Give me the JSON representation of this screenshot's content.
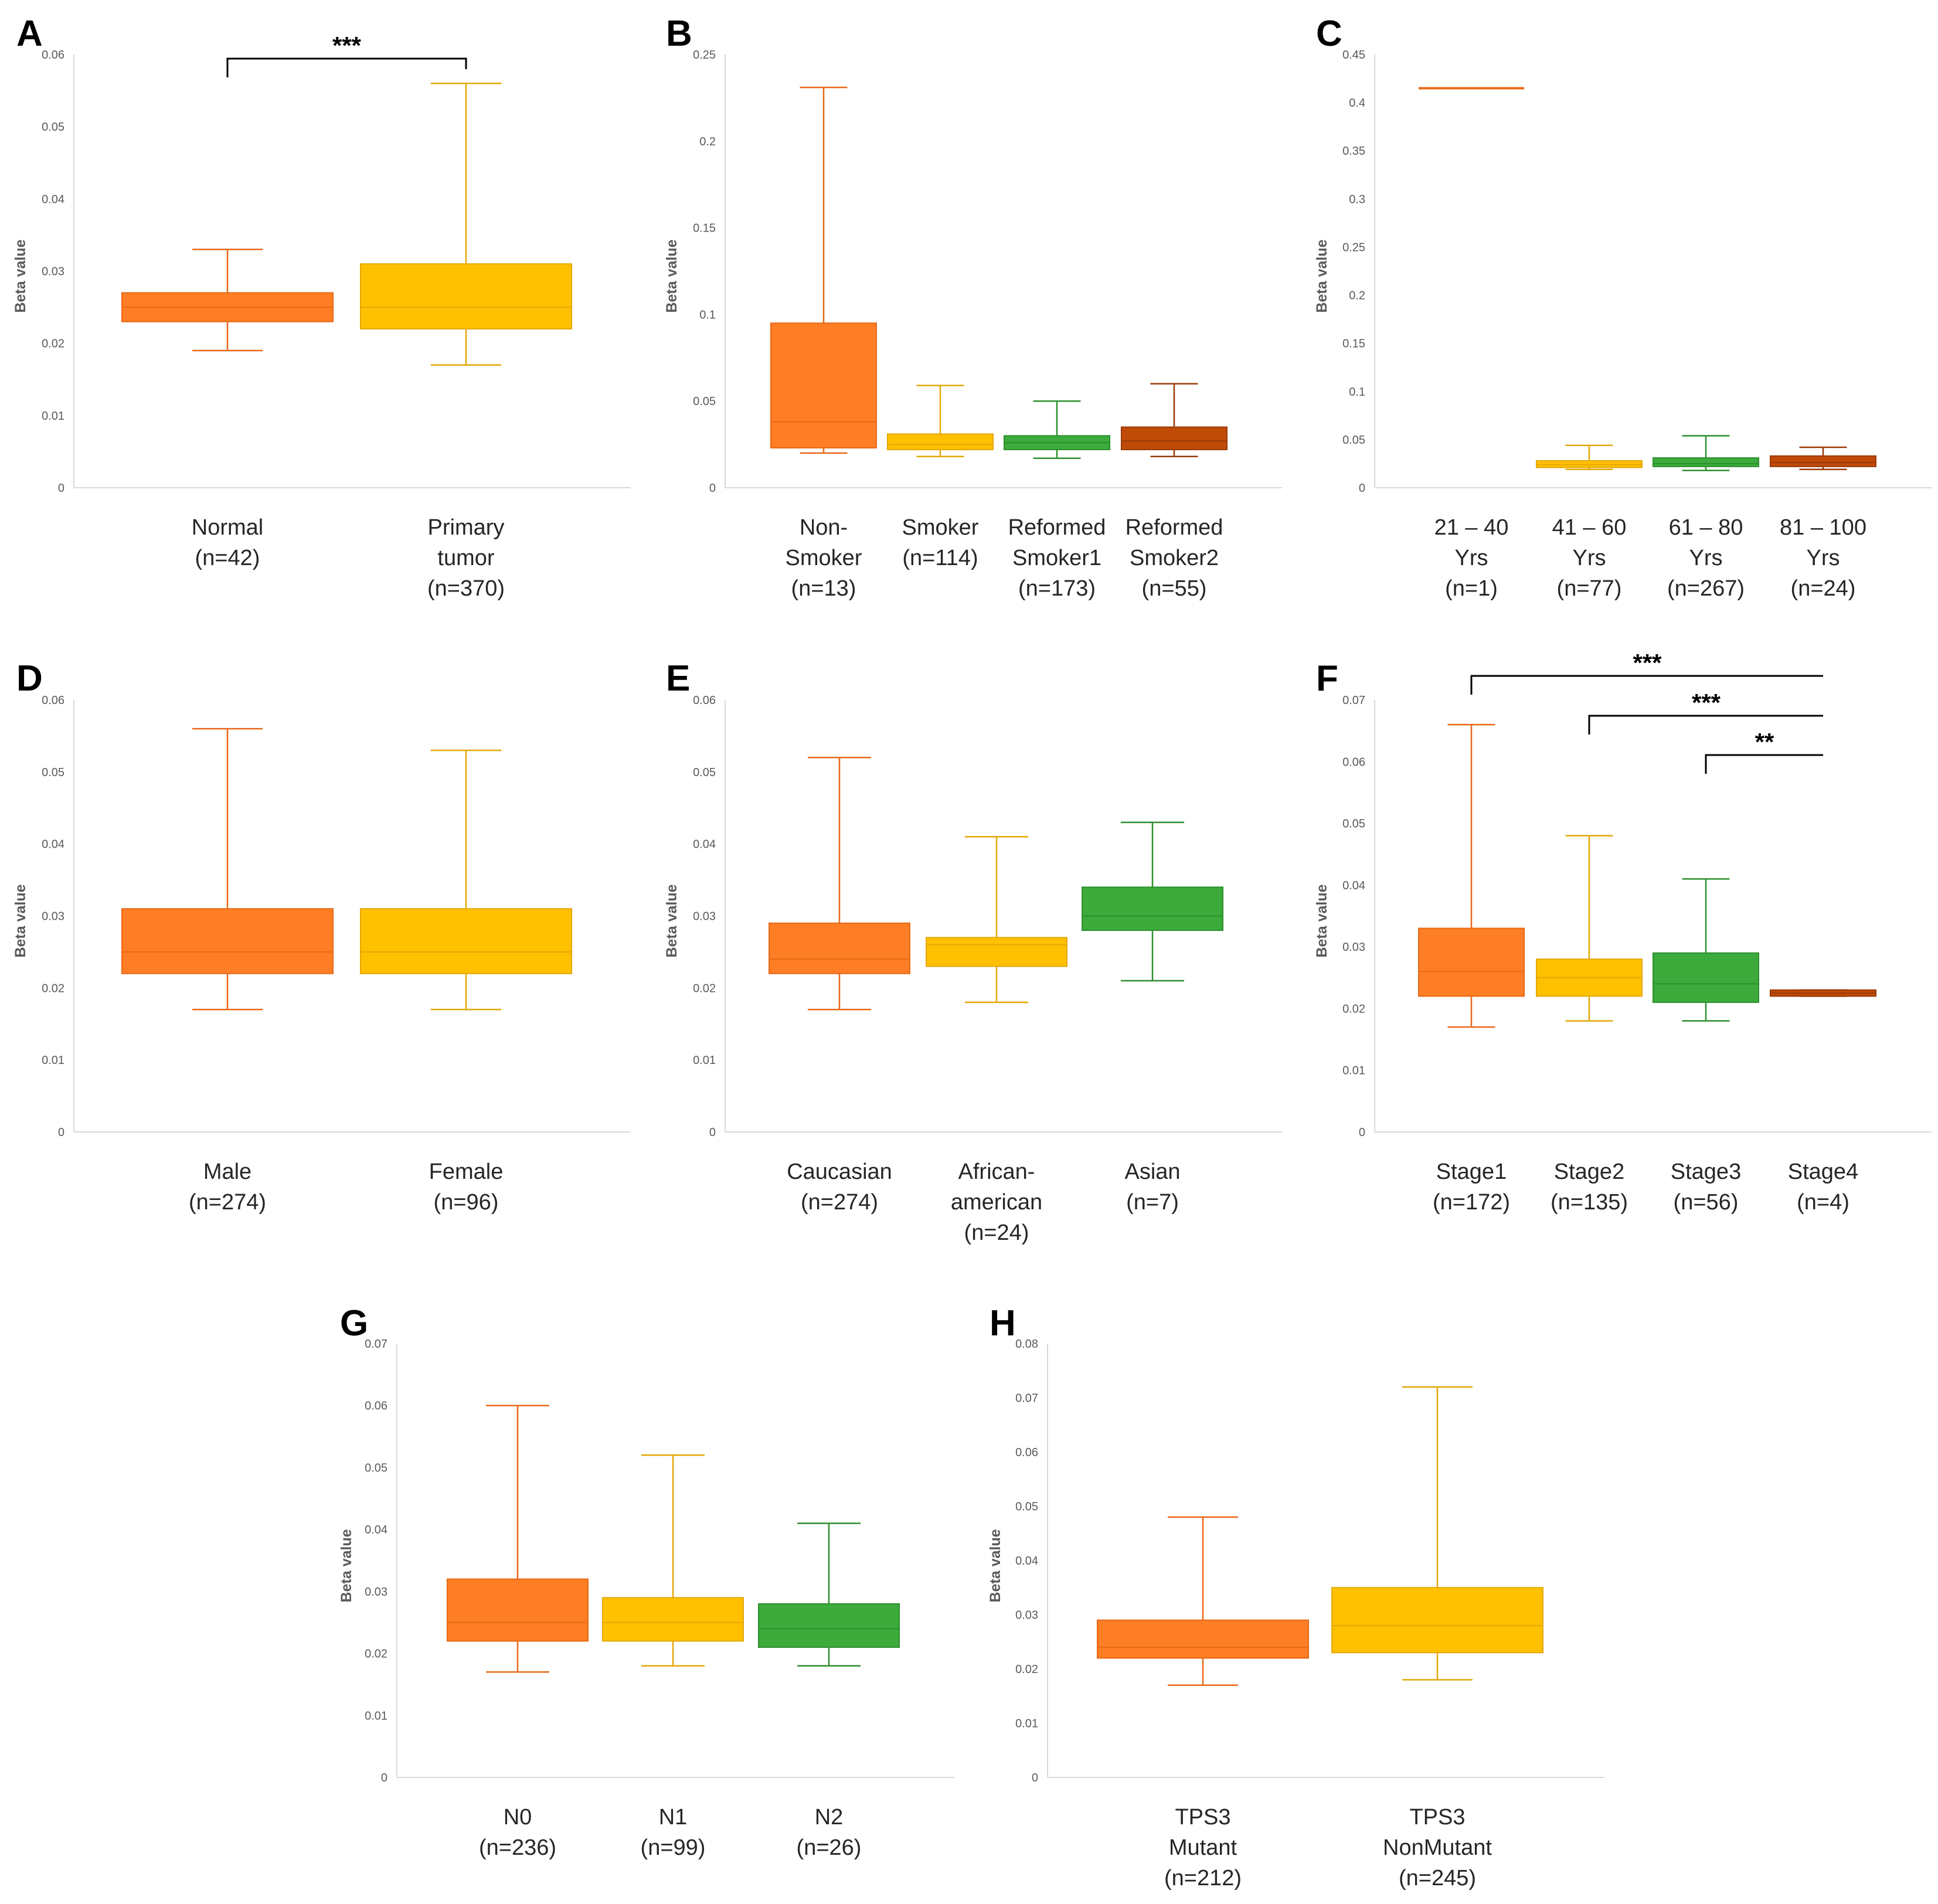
{
  "colors": {
    "orange": "#fd7e24",
    "orange_stroke": "#e86818",
    "yellow": "#ffc000",
    "yellow_stroke": "#e3a806",
    "green": "#3cab3c",
    "green_stroke": "#2d8f2d",
    "brown": "#c04a08",
    "brown_stroke": "#9a3a06"
  },
  "chart_data": [
    {
      "panel": "A",
      "type": "boxplot",
      "ylabel": "Beta value",
      "ylim": [
        0,
        0.06
      ],
      "yticks": [
        "0",
        "0.01",
        "0.02",
        "0.03",
        "0.04",
        "0.05",
        "0.06"
      ],
      "categories": [
        {
          "label": [
            "Normal",
            "(n=42)"
          ],
          "min": 0.019,
          "q1": 0.023,
          "median": 0.025,
          "q3": 0.027,
          "max": 0.033,
          "color": "orange"
        },
        {
          "label": [
            "Primary",
            "tumor",
            "(n=370)"
          ],
          "min": 0.017,
          "q1": 0.022,
          "median": 0.025,
          "q3": 0.031,
          "max": 0.056,
          "color": "yellow"
        }
      ],
      "significance": [
        {
          "from": 0,
          "to": 1,
          "label": "***"
        }
      ]
    },
    {
      "panel": "B",
      "type": "boxplot",
      "ylabel": "Beta value",
      "ylim": [
        0,
        0.25
      ],
      "yticks": [
        "0",
        "0.05",
        "0.1",
        "0.15",
        "0.2",
        "0.25"
      ],
      "categories": [
        {
          "label": [
            "Non-",
            "Smoker",
            "(n=13)"
          ],
          "min": 0.02,
          "q1": 0.023,
          "median": 0.038,
          "q3": 0.095,
          "max": 0.231,
          "color": "orange"
        },
        {
          "label": [
            "Smoker",
            "(n=114)"
          ],
          "min": 0.018,
          "q1": 0.022,
          "median": 0.025,
          "q3": 0.031,
          "max": 0.059,
          "color": "yellow"
        },
        {
          "label": [
            "Reformed",
            "Smoker1",
            "(n=173)"
          ],
          "min": 0.017,
          "q1": 0.022,
          "median": 0.026,
          "q3": 0.03,
          "max": 0.05,
          "color": "green"
        },
        {
          "label": [
            "Reformed",
            "Smoker2",
            "(n=55)"
          ],
          "min": 0.018,
          "q1": 0.022,
          "median": 0.027,
          "q3": 0.035,
          "max": 0.06,
          "color": "brown"
        }
      ],
      "significance": []
    },
    {
      "panel": "C",
      "type": "boxplot",
      "ylabel": "Beta value",
      "ylim": [
        0,
        0.45
      ],
      "yticks": [
        "0",
        "0.05",
        "0.1",
        "0.15",
        "0.2",
        "0.25",
        "0.3",
        "0.35",
        "0.4",
        "0.45"
      ],
      "categories": [
        {
          "label": [
            "21 – 40",
            "Yrs",
            "(n=1)"
          ],
          "min": 0.415,
          "q1": 0.415,
          "median": 0.415,
          "q3": 0.415,
          "max": 0.415,
          "color": "orange"
        },
        {
          "label": [
            "41 – 60",
            "Yrs",
            "(n=77)"
          ],
          "min": 0.019,
          "q1": 0.021,
          "median": 0.024,
          "q3": 0.028,
          "max": 0.044,
          "color": "yellow"
        },
        {
          "label": [
            "61 – 80",
            "Yrs",
            "(n=267)"
          ],
          "min": 0.018,
          "q1": 0.022,
          "median": 0.025,
          "q3": 0.031,
          "max": 0.054,
          "color": "green"
        },
        {
          "label": [
            "81 – 100",
            "Yrs",
            "(n=24)"
          ],
          "min": 0.019,
          "q1": 0.022,
          "median": 0.026,
          "q3": 0.033,
          "max": 0.042,
          "color": "brown"
        }
      ],
      "significance": []
    },
    {
      "panel": "D",
      "type": "boxplot",
      "ylabel": "Beta value",
      "ylim": [
        0,
        0.06
      ],
      "yticks": [
        "0",
        "0.01",
        "0.02",
        "0.03",
        "0.04",
        "0.05",
        "0.06"
      ],
      "categories": [
        {
          "label": [
            "Male",
            "(n=274)"
          ],
          "min": 0.017,
          "q1": 0.022,
          "median": 0.025,
          "q3": 0.031,
          "max": 0.056,
          "color": "orange"
        },
        {
          "label": [
            "Female",
            "(n=96)"
          ],
          "min": 0.017,
          "q1": 0.022,
          "median": 0.025,
          "q3": 0.031,
          "max": 0.053,
          "color": "yellow"
        }
      ],
      "significance": []
    },
    {
      "panel": "E",
      "type": "boxplot",
      "ylabel": "Beta value",
      "ylim": [
        0,
        0.06
      ],
      "yticks": [
        "0",
        "0.01",
        "0.02",
        "0.03",
        "0.04",
        "0.05",
        "0.06"
      ],
      "categories": [
        {
          "label": [
            "Caucasian",
            "(n=274)"
          ],
          "min": 0.017,
          "q1": 0.022,
          "median": 0.024,
          "q3": 0.029,
          "max": 0.052,
          "color": "orange"
        },
        {
          "label": [
            "African-",
            "american",
            "(n=24)"
          ],
          "min": 0.018,
          "q1": 0.023,
          "median": 0.026,
          "q3": 0.027,
          "max": 0.041,
          "color": "yellow"
        },
        {
          "label": [
            "Asian",
            "(n=7)"
          ],
          "min": 0.021,
          "q1": 0.028,
          "median": 0.03,
          "q3": 0.034,
          "max": 0.043,
          "color": "green"
        }
      ],
      "significance": []
    },
    {
      "panel": "F",
      "type": "boxplot",
      "ylabel": "Beta value",
      "ylim": [
        0,
        0.07
      ],
      "yticks": [
        "0",
        "0.01",
        "0.02",
        "0.03",
        "0.04",
        "0.05",
        "0.06",
        "0.07"
      ],
      "categories": [
        {
          "label": [
            "Stage1",
            "(n=172)"
          ],
          "min": 0.017,
          "q1": 0.022,
          "median": 0.026,
          "q3": 0.033,
          "max": 0.066,
          "color": "orange"
        },
        {
          "label": [
            "Stage2",
            "(n=135)"
          ],
          "min": 0.018,
          "q1": 0.022,
          "median": 0.025,
          "q3": 0.028,
          "max": 0.048,
          "color": "yellow"
        },
        {
          "label": [
            "Stage3",
            "(n=56)"
          ],
          "min": 0.018,
          "q1": 0.021,
          "median": 0.024,
          "q3": 0.029,
          "max": 0.041,
          "color": "green"
        },
        {
          "label": [
            "Stage4",
            "(n=4)"
          ],
          "min": 0.022,
          "q1": 0.022,
          "median": 0.0225,
          "q3": 0.023,
          "max": 0.023,
          "color": "brown"
        }
      ],
      "significance": [
        {
          "from": 0,
          "to": 3,
          "label": "***"
        },
        {
          "from": 1,
          "to": 3,
          "label": "***"
        },
        {
          "from": 2,
          "to": 3,
          "label": "**"
        }
      ]
    },
    {
      "panel": "G",
      "type": "boxplot",
      "ylabel": "Beta value",
      "ylim": [
        0,
        0.07
      ],
      "yticks": [
        "0",
        "0.01",
        "0.02",
        "0.03",
        "0.04",
        "0.05",
        "0.06",
        "0.07"
      ],
      "categories": [
        {
          "label": [
            "N0",
            "(n=236)"
          ],
          "min": 0.017,
          "q1": 0.022,
          "median": 0.025,
          "q3": 0.032,
          "max": 0.06,
          "color": "orange"
        },
        {
          "label": [
            "N1",
            "(n=99)"
          ],
          "min": 0.018,
          "q1": 0.022,
          "median": 0.025,
          "q3": 0.029,
          "max": 0.052,
          "color": "yellow"
        },
        {
          "label": [
            "N2",
            "(n=26)"
          ],
          "min": 0.018,
          "q1": 0.021,
          "median": 0.024,
          "q3": 0.028,
          "max": 0.041,
          "color": "green"
        }
      ],
      "significance": []
    },
    {
      "panel": "H",
      "type": "boxplot",
      "ylabel": "Beta value",
      "ylim": [
        0,
        0.08
      ],
      "yticks": [
        "0",
        "0.01",
        "0.02",
        "0.03",
        "0.04",
        "0.05",
        "0.06",
        "0.07",
        "0.08"
      ],
      "categories": [
        {
          "label": [
            "TPS3",
            "Mutant",
            "(n=212)"
          ],
          "min": 0.017,
          "q1": 0.022,
          "median": 0.024,
          "q3": 0.029,
          "max": 0.048,
          "color": "orange"
        },
        {
          "label": [
            "TPS3",
            "NonMutant",
            "(n=245)"
          ],
          "min": 0.018,
          "q1": 0.023,
          "median": 0.028,
          "q3": 0.035,
          "max": 0.072,
          "color": "yellow"
        }
      ],
      "significance": []
    }
  ]
}
